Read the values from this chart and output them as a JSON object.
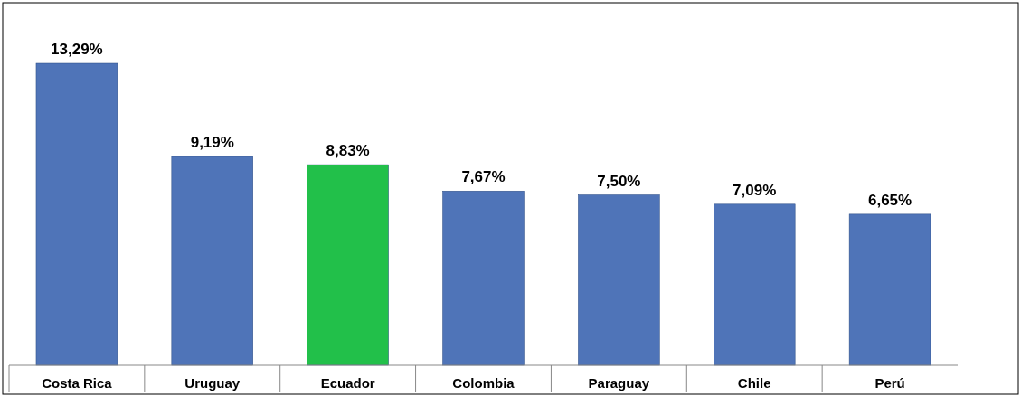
{
  "chart_data": {
    "type": "bar",
    "categories": [
      "Costa Rica",
      "Uruguay",
      "Ecuador",
      "Colombia",
      "Paraguay",
      "Chile",
      "Perú"
    ],
    "values": [
      13.29,
      9.19,
      8.83,
      7.67,
      7.5,
      7.09,
      6.65
    ],
    "colors": [
      "#4f74b8",
      "#4f74b8",
      "#22c04a",
      "#4f74b8",
      "#4f74b8",
      "#4f74b8",
      "#4f74b8"
    ],
    "value_labels": [
      "13,29%",
      "9,19%",
      "8,83%",
      "7,67%",
      "7,50%",
      "7,09%",
      "6,65%"
    ]
  }
}
